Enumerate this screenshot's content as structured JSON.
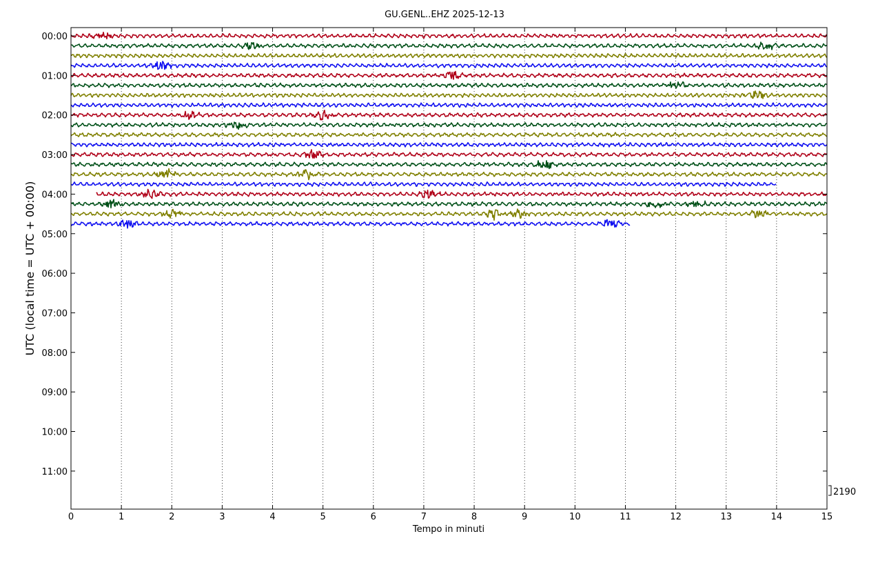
{
  "chart_data": {
    "type": "line",
    "title": "GU.GENL..EHZ 2025-12-13",
    "xlabel": "Tempo in minuti",
    "ylabel": "UTC (local time = UTC + 00:00)",
    "xlim": [
      0,
      15
    ],
    "x_ticks": [
      "0",
      "1",
      "2",
      "3",
      "4",
      "5",
      "6",
      "7",
      "8",
      "9",
      "10",
      "11",
      "12",
      "13",
      "14",
      "15"
    ],
    "y_ticks": [
      "00:00",
      "01:00",
      "02:00",
      "03:00",
      "04:00",
      "05:00",
      "06:00",
      "07:00",
      "08:00",
      "09:00",
      "10:00",
      "11:00"
    ],
    "grid": "vertical dotted",
    "scale_label": "2190",
    "trace_colors": [
      "#B00018",
      "#005018",
      "#808000",
      "#1010F0"
    ],
    "traces_per_hour": 4,
    "traces": [
      {
        "start": "00:00",
        "x_range": [
          0,
          15
        ],
        "events_min": [
          0.6
        ]
      },
      {
        "start": "00:15",
        "x_range": [
          0,
          15
        ],
        "events_min": [
          3.6,
          13.8
        ]
      },
      {
        "start": "00:30",
        "x_range": [
          0,
          15
        ],
        "events_min": []
      },
      {
        "start": "00:45",
        "x_range": [
          0,
          15
        ],
        "events_min": [
          1.8
        ]
      },
      {
        "start": "01:00",
        "x_range": [
          0,
          15
        ],
        "events_min": [
          7.6
        ]
      },
      {
        "start": "01:15",
        "x_range": [
          0,
          15
        ],
        "events_min": [
          12.0
        ]
      },
      {
        "start": "01:30",
        "x_range": [
          0,
          15
        ],
        "events_min": [
          13.6
        ]
      },
      {
        "start": "01:45",
        "x_range": [
          0,
          15
        ],
        "events_min": []
      },
      {
        "start": "02:00",
        "x_range": [
          0,
          15
        ],
        "events_min": [
          2.35,
          5.0
        ]
      },
      {
        "start": "02:15",
        "x_range": [
          0,
          15
        ],
        "events_min": [
          3.3
        ]
      },
      {
        "start": "02:30",
        "x_range": [
          0,
          15
        ],
        "events_min": []
      },
      {
        "start": "02:45",
        "x_range": [
          0,
          15
        ],
        "events_min": []
      },
      {
        "start": "03:00",
        "x_range": [
          0,
          15
        ],
        "events_min": [
          4.8
        ]
      },
      {
        "start": "03:15",
        "x_range": [
          0,
          15
        ],
        "events_min": [
          9.4
        ]
      },
      {
        "start": "03:30",
        "x_range": [
          0,
          15
        ],
        "events_min": [
          1.9,
          4.7
        ]
      },
      {
        "start": "03:45",
        "x_range": [
          0,
          14.0
        ],
        "events_min": []
      },
      {
        "start": "04:00",
        "x_range": [
          0.5,
          15
        ],
        "events_min": [
          1.6,
          7.1
        ]
      },
      {
        "start": "04:15",
        "x_range": [
          0,
          15
        ],
        "events_min": [
          0.8,
          11.6,
          12.4
        ]
      },
      {
        "start": "04:30",
        "x_range": [
          0,
          15
        ],
        "events_min": [
          2.0,
          8.4,
          8.85,
          13.65
        ]
      },
      {
        "start": "04:45",
        "x_range": [
          0,
          11.1
        ],
        "events_min": [
          1.1,
          10.7
        ]
      }
    ]
  }
}
